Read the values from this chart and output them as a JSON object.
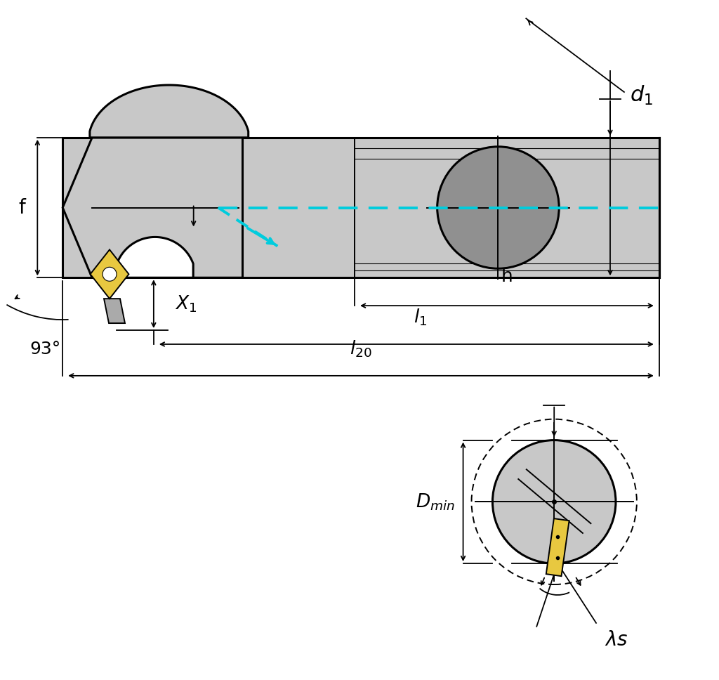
{
  "bg_color": "#ffffff",
  "gray_body": "#c8c8c8",
  "gray_darker": "#aaaaaa",
  "gray_hole": "#909090",
  "yellow_insert": "#e8c840",
  "cyan_color": "#00ccdd",
  "black": "#000000",
  "lw_main": 2.2,
  "lw_thin": 1.4,
  "lw_dim": 1.3
}
